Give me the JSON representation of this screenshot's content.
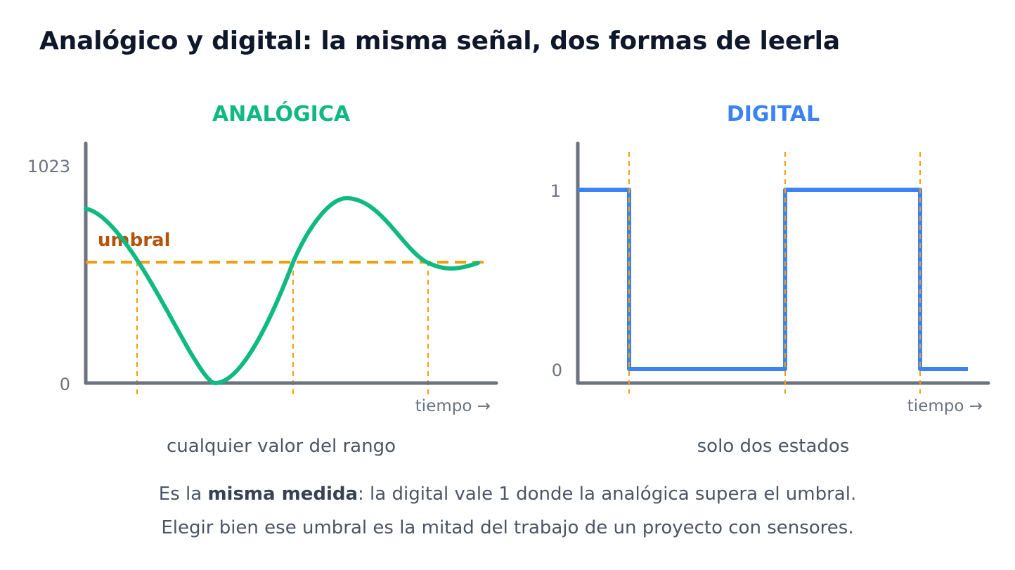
{
  "title": "Analógico y digital: la misma señal, dos formas de leerla",
  "analog": {
    "heading": "ANALÓGICA",
    "y_top": "1023",
    "y_bottom": "0",
    "threshold_label": "umbral",
    "x_label": "tiempo →",
    "caption": "cualquier valor del rango"
  },
  "digital": {
    "heading": "DIGITAL",
    "y_high": "1",
    "y_low": "0",
    "x_label": "tiempo →",
    "caption": "solo dos estados"
  },
  "footer": {
    "line1_before": "Es la ",
    "line1_bold": "misma medida",
    "line1_after": ": la digital vale 1 donde la analógica supera el umbral.",
    "line2": "Elegir bien ese umbral es la mitad del trabajo de un proyecto con sensores."
  },
  "colors": {
    "analog": "#10b981",
    "digital": "#3b82f6",
    "threshold": "#f59e0b",
    "threshold_label": "#b45309",
    "axis": "#6b7280"
  }
}
